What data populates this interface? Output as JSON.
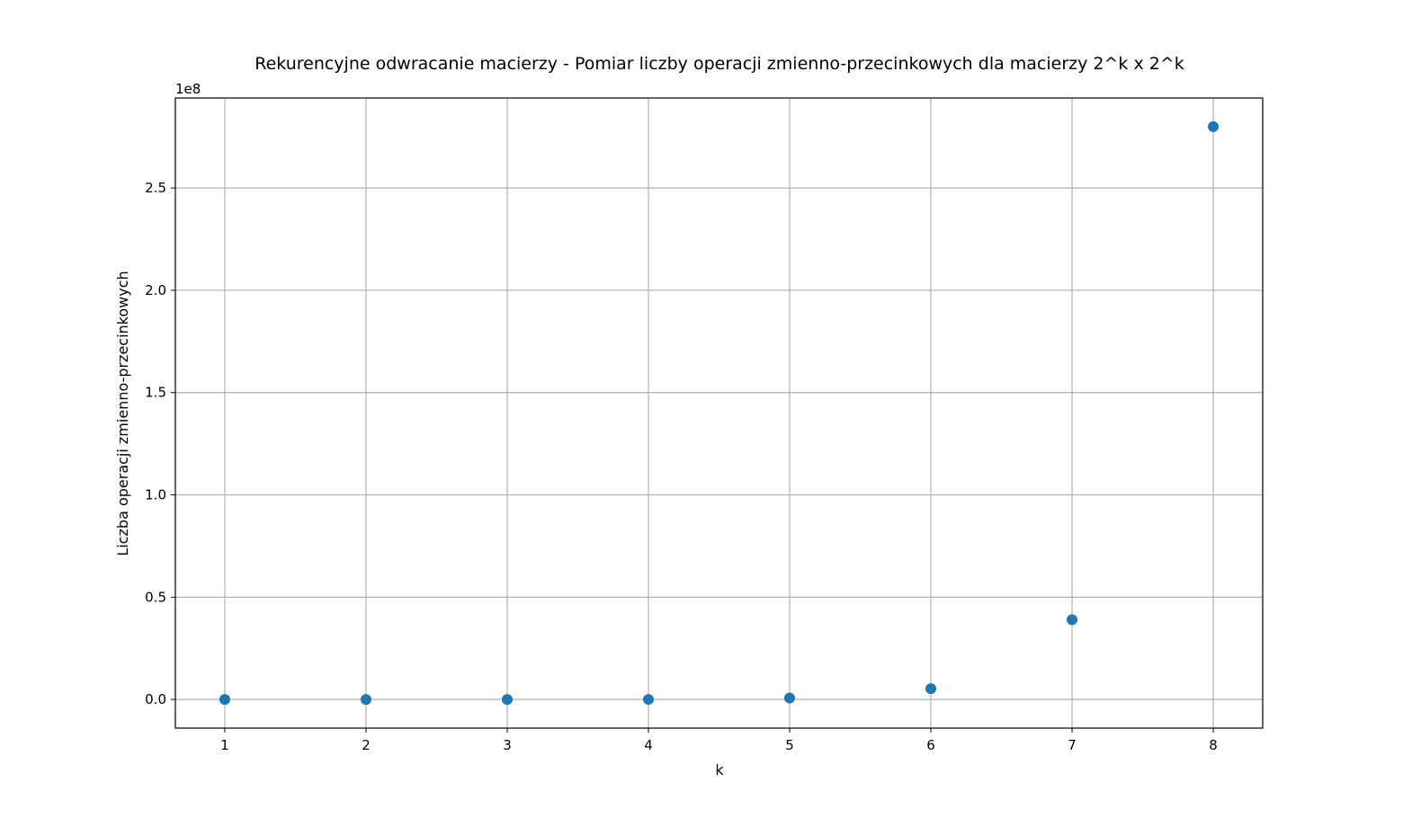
{
  "chart_data": {
    "type": "scatter",
    "title": "Rekurencyjne odwracanie macierzy - Pomiar liczby operacji zmienno-przecinkowych dla macierzy 2^k x 2^k",
    "xlabel": "k",
    "ylabel": "Liczba operacji zmienno-przecinkowych",
    "y_offset_text": "1e8",
    "x": [
      1,
      2,
      3,
      4,
      5,
      6,
      7,
      8
    ],
    "y": [
      10,
      150,
      2500,
      30000,
      700000,
      5300000,
      39000000,
      280000000
    ],
    "xlim": [
      0.65,
      8.35
    ],
    "ylim": [
      -14000000,
      294000000
    ],
    "x_ticks": [
      1,
      2,
      3,
      4,
      5,
      6,
      7,
      8
    ],
    "x_tick_labels": [
      "1",
      "2",
      "3",
      "4",
      "5",
      "6",
      "7",
      "8"
    ],
    "y_ticks": [
      0,
      50000000,
      100000000,
      150000000,
      200000000,
      250000000
    ],
    "y_tick_labels": [
      "0.0",
      "0.5",
      "1.0",
      "1.5",
      "2.0",
      "2.5"
    ],
    "grid": true,
    "marker_color": "#1f77b4"
  }
}
